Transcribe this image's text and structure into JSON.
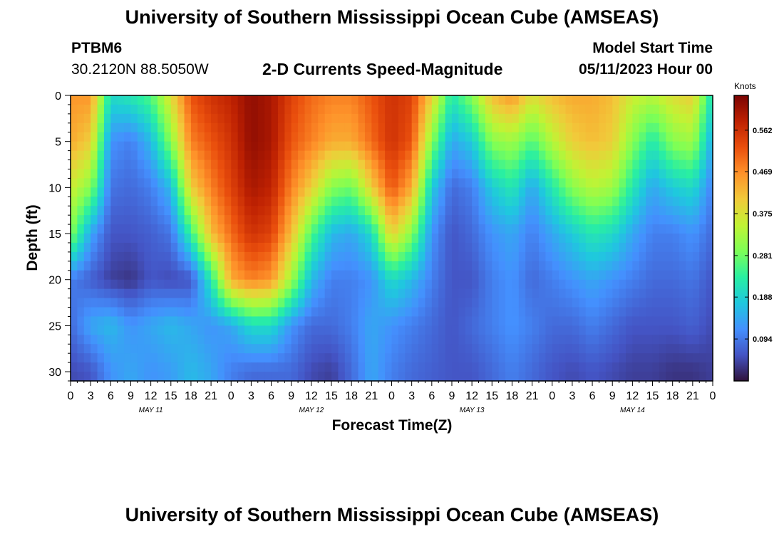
{
  "header": {
    "title": "University of Southern Mississippi Ocean Cube (AMSEAS)",
    "station_name": "PTBM6",
    "station_coords": "30.2120N  88.5050W",
    "subtitle": "2-D Currents Speed-Magnitude",
    "model_start_label": "Model Start Time",
    "model_start_value": "05/11/2023 Hour 00"
  },
  "footer": {
    "title": "University of Southern Mississippi Ocean Cube (AMSEAS)"
  },
  "chart_data": {
    "type": "heatmap",
    "title": "2-D Currents Speed-Magnitude",
    "xlabel": "Forecast Time(Z)",
    "ylabel": "Depth (ft)",
    "x_hours_range": [
      0,
      96
    ],
    "y_depth_range_ft": [
      0,
      31
    ],
    "x_tick_hours": [
      0,
      3,
      6,
      9,
      12,
      15,
      18,
      21,
      24,
      27,
      30,
      33,
      36,
      39,
      42,
      45,
      48,
      51,
      54,
      57,
      60,
      63,
      66,
      69,
      72,
      75,
      78,
      81,
      84,
      87,
      90,
      93,
      96
    ],
    "x_tick_labels": [
      "0",
      "3",
      "6",
      "9",
      "12",
      "15",
      "18",
      "21",
      "0",
      "3",
      "6",
      "9",
      "12",
      "15",
      "18",
      "21",
      "0",
      "3",
      "6",
      "9",
      "12",
      "15",
      "18",
      "21",
      "0",
      "3",
      "6",
      "9",
      "12",
      "15",
      "18",
      "21",
      "0"
    ],
    "day_labels": [
      {
        "label": "MAY 11",
        "hour": 12
      },
      {
        "label": "MAY 12",
        "hour": 36
      },
      {
        "label": "MAY 13",
        "hour": 60
      },
      {
        "label": "MAY 14",
        "hour": 84
      }
    ],
    "y_ticks": [
      0,
      5,
      10,
      15,
      20,
      25,
      30
    ],
    "y_tick_labels": [
      "0",
      "5",
      "10",
      "15",
      "20",
      "25",
      "30"
    ],
    "colorbar": {
      "units": "Knots",
      "range": [
        0,
        0.64
      ],
      "ticks": [
        0.094,
        0.188,
        0.281,
        0.375,
        0.469,
        0.562
      ],
      "tick_labels": [
        "0.094",
        "0.188",
        "0.281",
        "0.375",
        "0.469",
        "0.562"
      ],
      "stops": [
        "#30123b",
        "#4454c4",
        "#4490fe",
        "#1fc8de",
        "#29efa2",
        "#7dff56",
        "#c1f334",
        "#f1ca3a",
        "#fe922a",
        "#ea4f0d",
        "#be2102",
        "#7a0403"
      ]
    },
    "depth_levels_ft": [
      0,
      5,
      10,
      15,
      20,
      25,
      30
    ],
    "grid_hours": [
      0,
      3,
      6,
      9,
      12,
      15,
      18,
      21,
      24,
      27,
      30,
      33,
      36,
      39,
      42,
      45,
      48,
      51,
      54,
      57,
      60,
      63,
      66,
      69,
      72,
      75,
      78,
      81,
      84,
      87,
      90,
      93,
      96
    ],
    "speed_knots": [
      [
        0.46,
        0.46,
        0.2,
        0.22,
        0.26,
        0.38,
        0.52,
        0.56,
        0.58,
        0.62,
        0.6,
        0.54,
        0.5,
        0.48,
        0.48,
        0.52,
        0.56,
        0.54,
        0.4,
        0.22,
        0.3,
        0.42,
        0.46,
        0.38,
        0.42,
        0.44,
        0.44,
        0.42,
        0.36,
        0.34,
        0.38,
        0.4,
        0.2
      ],
      [
        0.44,
        0.4,
        0.12,
        0.1,
        0.16,
        0.3,
        0.48,
        0.52,
        0.56,
        0.62,
        0.6,
        0.52,
        0.48,
        0.44,
        0.44,
        0.5,
        0.56,
        0.52,
        0.3,
        0.14,
        0.18,
        0.3,
        0.32,
        0.26,
        0.34,
        0.4,
        0.42,
        0.4,
        0.3,
        0.22,
        0.3,
        0.32,
        0.14
      ],
      [
        0.36,
        0.3,
        0.09,
        0.08,
        0.1,
        0.16,
        0.4,
        0.48,
        0.54,
        0.6,
        0.58,
        0.48,
        0.4,
        0.3,
        0.28,
        0.4,
        0.52,
        0.44,
        0.18,
        0.08,
        0.1,
        0.18,
        0.22,
        0.14,
        0.22,
        0.3,
        0.34,
        0.32,
        0.22,
        0.14,
        0.18,
        0.2,
        0.1
      ],
      [
        0.3,
        0.14,
        0.06,
        0.06,
        0.07,
        0.09,
        0.24,
        0.42,
        0.5,
        0.56,
        0.54,
        0.42,
        0.26,
        0.16,
        0.14,
        0.2,
        0.4,
        0.3,
        0.12,
        0.06,
        0.08,
        0.12,
        0.14,
        0.1,
        0.14,
        0.18,
        0.22,
        0.2,
        0.14,
        0.1,
        0.1,
        0.12,
        0.08
      ],
      [
        0.1,
        0.07,
        0.04,
        0.03,
        0.06,
        0.05,
        0.06,
        0.22,
        0.44,
        0.48,
        0.46,
        0.32,
        0.16,
        0.1,
        0.1,
        0.12,
        0.2,
        0.16,
        0.1,
        0.06,
        0.06,
        0.1,
        0.12,
        0.08,
        0.1,
        0.12,
        0.14,
        0.12,
        0.1,
        0.08,
        0.08,
        0.09,
        0.06
      ],
      [
        0.08,
        0.14,
        0.16,
        0.12,
        0.14,
        0.16,
        0.14,
        0.12,
        0.14,
        0.2,
        0.2,
        0.12,
        0.08,
        0.08,
        0.1,
        0.14,
        0.12,
        0.1,
        0.08,
        0.06,
        0.08,
        0.1,
        0.12,
        0.1,
        0.08,
        0.08,
        0.1,
        0.08,
        0.06,
        0.06,
        0.06,
        0.07,
        0.05
      ],
      [
        0.05,
        0.06,
        0.12,
        0.14,
        0.12,
        0.13,
        0.16,
        0.14,
        0.1,
        0.08,
        0.08,
        0.08,
        0.05,
        0.04,
        0.08,
        0.14,
        0.1,
        0.08,
        0.07,
        0.06,
        0.06,
        0.08,
        0.1,
        0.08,
        0.06,
        0.05,
        0.06,
        0.05,
        0.04,
        0.04,
        0.03,
        0.03,
        0.04
      ]
    ]
  }
}
